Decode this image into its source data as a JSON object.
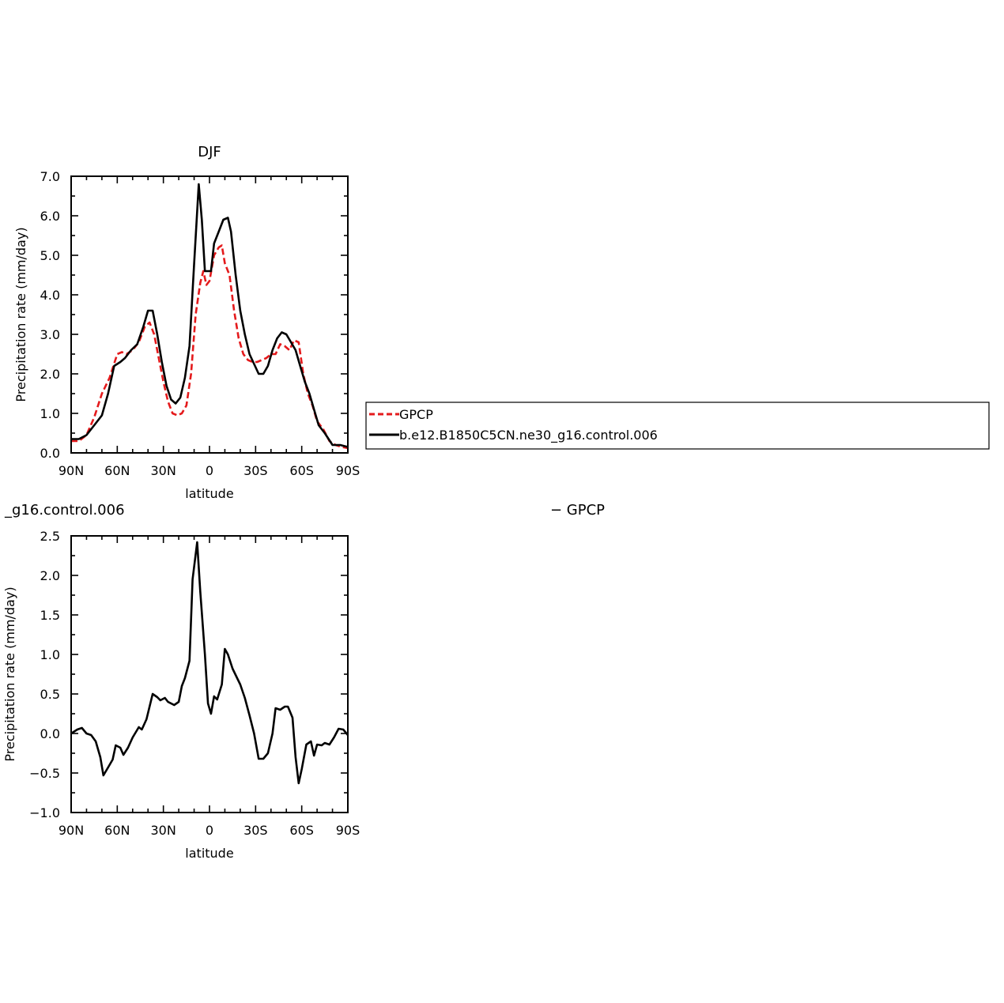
{
  "chart_data": [
    {
      "type": "line",
      "title": "DJF",
      "xlabel": "latitude",
      "ylabel": "Precipitation rate (mm/day)",
      "xlim": [
        90,
        -90
      ],
      "ylim": [
        0,
        7
      ],
      "xticks": [
        {
          "value": 90,
          "label": "90N"
        },
        {
          "value": 60,
          "label": "60N"
        },
        {
          "value": 30,
          "label": "30N"
        },
        {
          "value": 0,
          "label": "0"
        },
        {
          "value": -30,
          "label": "30S"
        },
        {
          "value": -60,
          "label": "60S"
        },
        {
          "value": -90,
          "label": "90S"
        }
      ],
      "yticks": [
        {
          "value": 0,
          "label": "0.0"
        },
        {
          "value": 1,
          "label": "1.0"
        },
        {
          "value": 2,
          "label": "2.0"
        },
        {
          "value": 3,
          "label": "3.0"
        },
        {
          "value": 4,
          "label": "4.0"
        },
        {
          "value": 5,
          "label": "5.0"
        },
        {
          "value": 6,
          "label": "6.0"
        },
        {
          "value": 7,
          "label": "7.0"
        }
      ],
      "legend": "right",
      "series": [
        {
          "name": "GPCP",
          "color": "#e41a1c",
          "dash": true,
          "points": [
            [
              90,
              0.3
            ],
            [
              85,
              0.3
            ],
            [
              80,
              0.45
            ],
            [
              75,
              0.9
            ],
            [
              70,
              1.5
            ],
            [
              65,
              1.9
            ],
            [
              60,
              2.5
            ],
            [
              57,
              2.55
            ],
            [
              54,
              2.5
            ],
            [
              50,
              2.6
            ],
            [
              46,
              2.8
            ],
            [
              42,
              3.2
            ],
            [
              39,
              3.3
            ],
            [
              36,
              3.0
            ],
            [
              33,
              2.4
            ],
            [
              30,
              1.8
            ],
            [
              27,
              1.3
            ],
            [
              24,
              1.0
            ],
            [
              21,
              0.95
            ],
            [
              18,
              1.0
            ],
            [
              15,
              1.2
            ],
            [
              12,
              2.0
            ],
            [
              9,
              3.5
            ],
            [
              6,
              4.3
            ],
            [
              4,
              4.6
            ],
            [
              2,
              4.25
            ],
            [
              0,
              4.35
            ],
            [
              -3,
              5.0
            ],
            [
              -6,
              5.2
            ],
            [
              -8,
              5.25
            ],
            [
              -10,
              4.8
            ],
            [
              -13,
              4.5
            ],
            [
              -16,
              3.6
            ],
            [
              -19,
              2.9
            ],
            [
              -22,
              2.5
            ],
            [
              -25,
              2.35
            ],
            [
              -28,
              2.3
            ],
            [
              -31,
              2.3
            ],
            [
              -34,
              2.35
            ],
            [
              -37,
              2.4
            ],
            [
              -40,
              2.5
            ],
            [
              -43,
              2.5
            ],
            [
              -46,
              2.75
            ],
            [
              -49,
              2.7
            ],
            [
              -52,
              2.6
            ],
            [
              -55,
              2.85
            ],
            [
              -58,
              2.8
            ],
            [
              -61,
              2.0
            ],
            [
              -64,
              1.5
            ],
            [
              -67,
              1.2
            ],
            [
              -70,
              0.8
            ],
            [
              -74,
              0.6
            ],
            [
              -78,
              0.3
            ],
            [
              -82,
              0.2
            ],
            [
              -86,
              0.15
            ],
            [
              -90,
              0.12
            ]
          ]
        },
        {
          "name": "b.e12.B1850C5CN.ne30_g16.control.006",
          "color": "#000000",
          "dash": false,
          "points": [
            [
              90,
              0.35
            ],
            [
              85,
              0.35
            ],
            [
              80,
              0.45
            ],
            [
              75,
              0.7
            ],
            [
              70,
              0.95
            ],
            [
              66,
              1.5
            ],
            [
              62,
              2.2
            ],
            [
              58,
              2.3
            ],
            [
              55,
              2.4
            ],
            [
              51,
              2.6
            ],
            [
              47,
              2.75
            ],
            [
              43,
              3.2
            ],
            [
              40,
              3.6
            ],
            [
              37,
              3.6
            ],
            [
              34,
              3.0
            ],
            [
              31,
              2.3
            ],
            [
              28,
              1.7
            ],
            [
              25,
              1.35
            ],
            [
              22,
              1.25
            ],
            [
              19,
              1.4
            ],
            [
              16,
              1.9
            ],
            [
              13,
              2.7
            ],
            [
              10,
              4.8
            ],
            [
              7,
              6.8
            ],
            [
              5,
              5.9
            ],
            [
              3,
              4.6
            ],
            [
              1,
              4.6
            ],
            [
              -1,
              4.6
            ],
            [
              -3,
              5.3
            ],
            [
              -6,
              5.6
            ],
            [
              -9,
              5.9
            ],
            [
              -12,
              5.95
            ],
            [
              -14,
              5.6
            ],
            [
              -17,
              4.5
            ],
            [
              -20,
              3.6
            ],
            [
              -23,
              3.0
            ],
            [
              -26,
              2.5
            ],
            [
              -29,
              2.25
            ],
            [
              -32,
              2.0
            ],
            [
              -35,
              2.0
            ],
            [
              -38,
              2.2
            ],
            [
              -41,
              2.6
            ],
            [
              -44,
              2.9
            ],
            [
              -47,
              3.05
            ],
            [
              -50,
              3.0
            ],
            [
              -53,
              2.8
            ],
            [
              -56,
              2.6
            ],
            [
              -59,
              2.2
            ],
            [
              -62,
              1.8
            ],
            [
              -65,
              1.5
            ],
            [
              -68,
              1.1
            ],
            [
              -71,
              0.7
            ],
            [
              -75,
              0.5
            ],
            [
              -80,
              0.2
            ],
            [
              -85,
              0.2
            ],
            [
              -90,
              0.15
            ]
          ]
        }
      ]
    },
    {
      "type": "line",
      "title": "_g16.control.006",
      "title_right": "− GPCP",
      "xlabel": "latitude",
      "ylabel": "Precipitation rate (mm/day)",
      "xlim": [
        90,
        -90
      ],
      "ylim": [
        -1,
        2.5
      ],
      "xticks": [
        {
          "value": 90,
          "label": "90N"
        },
        {
          "value": 60,
          "label": "60N"
        },
        {
          "value": 30,
          "label": "30N"
        },
        {
          "value": 0,
          "label": "0"
        },
        {
          "value": -30,
          "label": "30S"
        },
        {
          "value": -60,
          "label": "60S"
        },
        {
          "value": -90,
          "label": "90S"
        }
      ],
      "yticks": [
        {
          "value": -1,
          "label": "−1.0"
        },
        {
          "value": -0.5,
          "label": "−0.5"
        },
        {
          "value": 0,
          "label": "0.0"
        },
        {
          "value": 0.5,
          "label": "0.5"
        },
        {
          "value": 1,
          "label": "1.0"
        },
        {
          "value": 1.5,
          "label": "1.5"
        },
        {
          "value": 2,
          "label": "2.0"
        },
        {
          "value": 2.5,
          "label": "2.5"
        }
      ],
      "series": [
        {
          "color": "#000000",
          "dash": false,
          "points": [
            [
              90,
              0.0
            ],
            [
              86,
              0.05
            ],
            [
              83,
              0.07
            ],
            [
              80,
              0.0
            ],
            [
              77,
              -0.02
            ],
            [
              74,
              -0.1
            ],
            [
              71,
              -0.3
            ],
            [
              69,
              -0.53
            ],
            [
              66,
              -0.43
            ],
            [
              63,
              -0.33
            ],
            [
              61,
              -0.15
            ],
            [
              58,
              -0.18
            ],
            [
              56,
              -0.27
            ],
            [
              53,
              -0.18
            ],
            [
              50,
              -0.05
            ],
            [
              46,
              0.08
            ],
            [
              44,
              0.05
            ],
            [
              41,
              0.18
            ],
            [
              37,
              0.5
            ],
            [
              34,
              0.46
            ],
            [
              32,
              0.42
            ],
            [
              29,
              0.45
            ],
            [
              27,
              0.4
            ],
            [
              23,
              0.36
            ],
            [
              20,
              0.4
            ],
            [
              18,
              0.6
            ],
            [
              16,
              0.7
            ],
            [
              13,
              0.92
            ],
            [
              11,
              1.95
            ],
            [
              8,
              2.42
            ],
            [
              6,
              1.8
            ],
            [
              3,
              1.0
            ],
            [
              1,
              0.38
            ],
            [
              -1,
              0.25
            ],
            [
              -3,
              0.47
            ],
            [
              -5,
              0.43
            ],
            [
              -8,
              0.62
            ],
            [
              -10,
              1.07
            ],
            [
              -12,
              1.0
            ],
            [
              -15,
              0.82
            ],
            [
              -18,
              0.7
            ],
            [
              -20,
              0.62
            ],
            [
              -23,
              0.45
            ],
            [
              -26,
              0.23
            ],
            [
              -29,
              0.0
            ],
            [
              -32,
              -0.32
            ],
            [
              -35,
              -0.32
            ],
            [
              -38,
              -0.25
            ],
            [
              -41,
              0.0
            ],
            [
              -43,
              0.32
            ],
            [
              -46,
              0.3
            ],
            [
              -49,
              0.34
            ],
            [
              -51,
              0.34
            ],
            [
              -54,
              0.2
            ],
            [
              -56,
              -0.3
            ],
            [
              -58,
              -0.63
            ],
            [
              -60,
              -0.45
            ],
            [
              -63,
              -0.14
            ],
            [
              -66,
              -0.1
            ],
            [
              -68,
              -0.28
            ],
            [
              -70,
              -0.14
            ],
            [
              -73,
              -0.15
            ],
            [
              -75,
              -0.12
            ],
            [
              -78,
              -0.14
            ],
            [
              -81,
              -0.05
            ],
            [
              -84,
              0.06
            ],
            [
              -87,
              0.05
            ],
            [
              -90,
              -0.02
            ]
          ]
        }
      ]
    }
  ]
}
